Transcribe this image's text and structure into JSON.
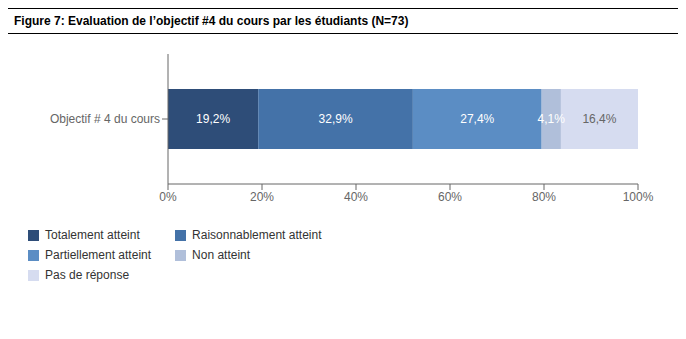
{
  "chart_data": {
    "type": "bar",
    "title": "Figure 7: Evaluation de l’objectif #4 du cours par les étudiants (N=73)",
    "orientation": "horizontal",
    "stacked": true,
    "categories": [
      "Objectif # 4 du cours"
    ],
    "series": [
      {
        "name": "Totalement atteint",
        "color": "#2E4D78",
        "values": [
          19.2
        ],
        "value_labels": [
          "19,2%"
        ]
      },
      {
        "name": "Raisonnablement atteint",
        "color": "#4472A8",
        "values": [
          32.9
        ],
        "value_labels": [
          "32,9%"
        ]
      },
      {
        "name": "Partiellement atteint",
        "color": "#5B8DC4",
        "values": [
          27.4
        ],
        "value_labels": [
          "27,4%"
        ]
      },
      {
        "name": "Non atteint",
        "color": "#B0BFDA",
        "values": [
          4.1
        ],
        "value_labels": [
          "4,1%"
        ]
      },
      {
        "name": "Pas de réponse",
        "color": "#D6DCF0",
        "values": [
          16.4
        ],
        "value_labels": [
          "16,4%"
        ]
      }
    ],
    "xlim": [
      0,
      100
    ],
    "xticks": [
      {
        "value": 0,
        "label": "0%"
      },
      {
        "value": 20,
        "label": "20%"
      },
      {
        "value": 40,
        "label": "40%"
      },
      {
        "value": 60,
        "label": "60%"
      },
      {
        "value": 80,
        "label": "80%"
      },
      {
        "value": 100,
        "label": "100%"
      }
    ],
    "data_labels": true,
    "grid": false,
    "legend": "bottom"
  }
}
